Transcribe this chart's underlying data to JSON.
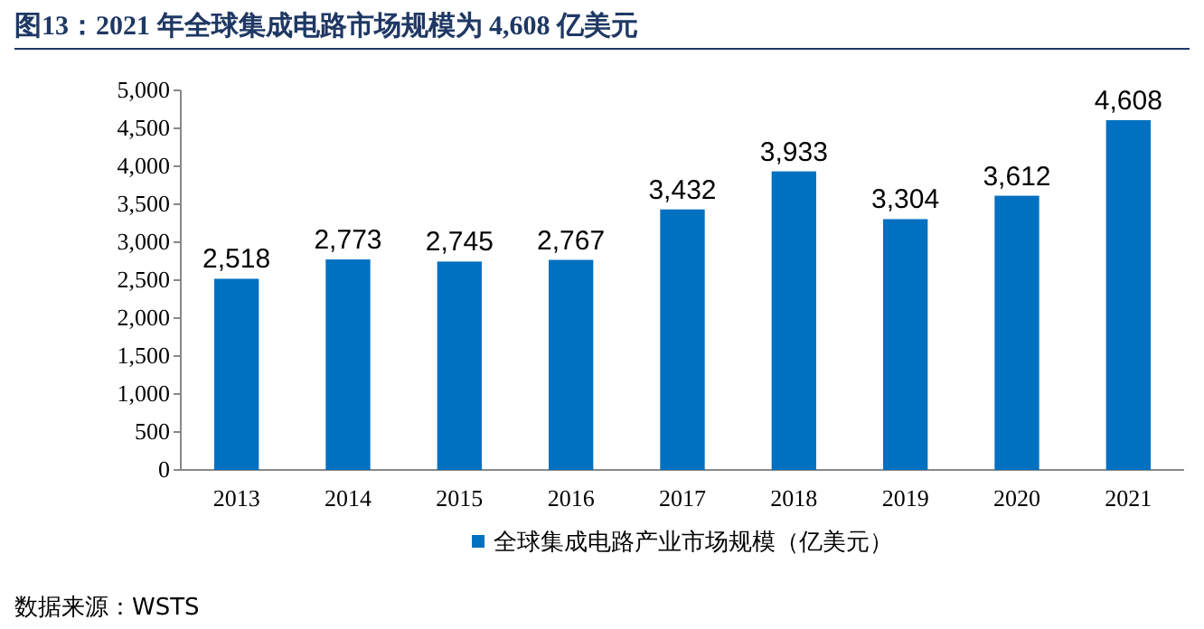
{
  "chart_data": {
    "type": "bar",
    "title": "图13：2021 年全球集成电路市场规模为 4,608 亿美元",
    "categories": [
      "2013",
      "2014",
      "2015",
      "2016",
      "2017",
      "2018",
      "2019",
      "2020",
      "2021"
    ],
    "series": [
      {
        "name": "全球集成电路产业市场规模（亿美元）",
        "color": "#0070c0",
        "values": [
          2518,
          2773,
          2745,
          2767,
          3432,
          3933,
          3304,
          3612,
          4608
        ],
        "value_labels": [
          "2,518",
          "2,773",
          "2,745",
          "2,767",
          "3,432",
          "3,933",
          "3,304",
          "3,612",
          "4,608"
        ]
      }
    ],
    "ylim": [
      0,
      5000
    ],
    "yticks": [
      {
        "value": 0,
        "label": "0"
      },
      {
        "value": 500,
        "label": "500"
      },
      {
        "value": 1000,
        "label": "1,000"
      },
      {
        "value": 1500,
        "label": "1,500"
      },
      {
        "value": 2000,
        "label": "2,000"
      },
      {
        "value": 2500,
        "label": "2,500"
      },
      {
        "value": 3000,
        "label": "3,000"
      },
      {
        "value": 3500,
        "label": "3,500"
      },
      {
        "value": 4000,
        "label": "4,000"
      },
      {
        "value": 4500,
        "label": "4,500"
      },
      {
        "value": 5000,
        "label": "5,000"
      }
    ],
    "grid": false,
    "legend": "bottom",
    "annotations": [
      "数据来源：WSTS"
    ]
  }
}
